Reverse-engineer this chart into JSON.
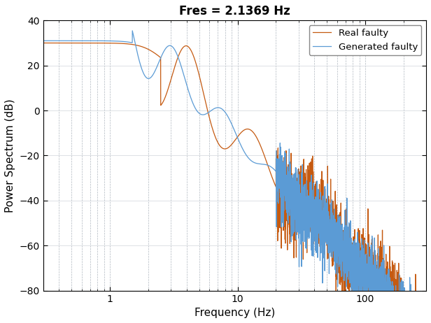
{
  "title": "Fres = 2.1369 Hz",
  "xlabel": "Frequency (Hz)",
  "ylabel": "Power Spectrum (dB)",
  "xlim": [
    0.3,
    300
  ],
  "ylim": [
    -80,
    40
  ],
  "yticks": [
    -80,
    -60,
    -40,
    -20,
    0,
    20,
    40
  ],
  "legend": [
    "Generated faulty",
    "Real faulty"
  ],
  "line_colors": [
    "#5b9bd5",
    "#c55a11"
  ],
  "fres": 2.1369,
  "background_color": "#ffffff"
}
